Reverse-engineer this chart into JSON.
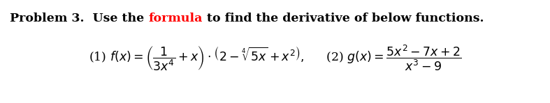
{
  "background_color": "#ffffff",
  "title_part1": "Problem 3.  Use the ",
  "title_part2": "formula",
  "title_part3": " to find the derivative of below functions.",
  "title_color1": "#000000",
  "title_color2": "#ff0000",
  "title_color3": "#000000",
  "title_fontsize": 12.5,
  "formula_fontsize": 12.5,
  "fig_width": 7.87,
  "fig_height": 1.48,
  "dpi": 100
}
